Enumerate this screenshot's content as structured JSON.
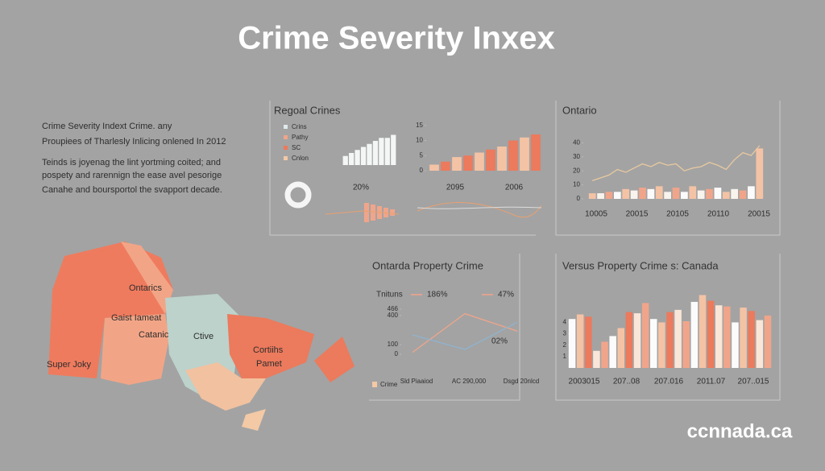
{
  "header": {
    "title": "Crime Severity Inxex"
  },
  "intro": [
    "Crime Severity Indext Crime. any",
    "Proupiees of Tharlesly Inlicing onlened In 2012",
    "Teinds is joyenag the lint yortming coited; and",
    "pospety and rarennign the ease avel pesorige",
    "Canahe and boursportol the svapport decade."
  ],
  "map": {
    "labels": [
      "Ontarics",
      "Gaist Iameat",
      "Catanic",
      "Ctive",
      "Super Joky",
      "Cortiihs",
      "Pamet"
    ]
  },
  "logo": "ccnnada.ca",
  "chart_data": [
    {
      "type": "bar",
      "title": "Regoal Crines",
      "legend": [
        {
          "name": "Crins",
          "color": "#dfe9ea"
        },
        {
          "name": "Pathy",
          "color": "#f0a58a"
        },
        {
          "name": "SC",
          "color": "#ec7a5c"
        },
        {
          "name": "Cnlon",
          "color": "#f3c9a6"
        }
      ],
      "values": [
        3,
        4,
        5,
        6,
        7,
        8,
        9,
        9,
        10
      ],
      "color": [
        "#f4f6f6"
      ],
      "ylim": [
        0,
        12
      ],
      "annotations": [
        "20%"
      ]
    },
    {
      "type": "bar",
      "values": [
        2,
        3,
        4.5,
        5,
        6,
        7,
        8,
        10,
        11,
        12
      ],
      "color": [
        "#f4c3a5",
        "#ec7a5c"
      ],
      "ylim": [
        0,
        16
      ],
      "yticks": [
        0,
        5,
        10,
        15
      ],
      "annotations": [
        "2095",
        "2006"
      ]
    },
    {
      "type": "bar",
      "title": "Ontario",
      "values": [
        4,
        4,
        5,
        5,
        7,
        6,
        8,
        7,
        9,
        5,
        8,
        5,
        9,
        6,
        7,
        8,
        5,
        7,
        6,
        9,
        36
      ],
      "color": [
        "#f4c3a5",
        "#f9f3ee",
        "#f0a58a",
        "#fbfbfb"
      ],
      "ylim": [
        0,
        50
      ],
      "yticks": [
        0,
        10,
        20,
        30,
        40
      ],
      "series": [
        {
          "color": "#e8c9a0",
          "values": [
            13,
            15,
            17,
            21,
            19,
            22,
            25,
            23,
            26,
            24,
            25,
            20,
            22,
            23,
            26,
            24,
            21,
            28,
            33,
            31,
            38
          ]
        }
      ],
      "x_labels": [
        "10005",
        "20015",
        "20105",
        "20110",
        "20015"
      ]
    },
    {
      "type": "line",
      "title": "Ontarda Property Crime",
      "legend_text": "Tnituns",
      "legend": [
        {
          "name": "186%",
          "color": "#f0a58a"
        },
        {
          "name": "47%",
          "color": "#f0a58a"
        },
        {
          "name": "Crime",
          "color": "#f3c9a6"
        }
      ],
      "categories": [
        "Sld Piaaiod",
        "AC 290,000",
        "Dsgd 20nlcd"
      ],
      "ylim": [
        0,
        500
      ],
      "yticks": [
        0,
        100,
        400,
        466
      ],
      "series": [
        {
          "color": "#f0a58a",
          "values": [
            20,
            420,
            240
          ]
        },
        {
          "color": "#8fb3cf",
          "values": [
            200,
            50,
            330
          ]
        }
      ],
      "annotations": [
        "02%"
      ]
    },
    {
      "type": "bar",
      "title": "Versus Property Crime s: Canada",
      "values": [
        4.3,
        4.7,
        4.5,
        1.5,
        2.3,
        2.8,
        3.5,
        4.9,
        4.8,
        5.7,
        4.3,
        4.0,
        4.9,
        5.1,
        4.1,
        5.8,
        6.4,
        5.9,
        5.5,
        5.4,
        4.0,
        5.3,
        5.0,
        4.2,
        4.6
      ],
      "color": [
        "#fbfbfb",
        "#f4c3a5",
        "#ec7a5c",
        "#f9e6d8",
        "#f0a58a"
      ],
      "ylim": [
        0,
        7
      ],
      "yticks": [
        1,
        2,
        3,
        4
      ],
      "x_labels": [
        "2003015",
        "207..08",
        "207.016",
        "2011.07",
        "207..015"
      ]
    }
  ]
}
